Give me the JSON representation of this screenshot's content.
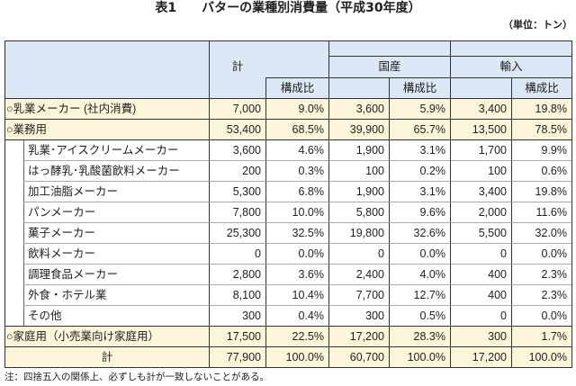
{
  "title": "表1　　バターの業種別消費量（平成30年度）",
  "unit": "（単位：トン）",
  "header": {
    "total": "計",
    "domestic": "国産",
    "imported": "輸入",
    "ratio": "構成比"
  },
  "sections": [
    {
      "label": "○乳業メーカー (社内消費)",
      "values": [
        "7,000",
        "9.0%",
        "3,600",
        "5.9%",
        "3,400",
        "19.8%"
      ]
    },
    {
      "label": "○業務用",
      "values": [
        "53,400",
        "68.5%",
        "39,900",
        "65.7%",
        "13,500",
        "78.5%"
      ],
      "breakdown": [
        {
          "label": "乳業･アイスクリームメーカー",
          "values": [
            "3,600",
            "4.6%",
            "1,900",
            "3.1%",
            "1,700",
            "9.9%"
          ]
        },
        {
          "label": "はっ酵乳･乳酸菌飲料メーカー",
          "values": [
            "200",
            "0.3%",
            "100",
            "0.2%",
            "100",
            "0.6%"
          ]
        },
        {
          "label": "加工油脂メーカー",
          "values": [
            "5,300",
            "6.8%",
            "1,900",
            "3.1%",
            "3,400",
            "19.8%"
          ]
        },
        {
          "label": "パンメーカー",
          "values": [
            "7,800",
            "10.0%",
            "5,800",
            "9.6%",
            "2,000",
            "11.6%"
          ]
        },
        {
          "label": "菓子メーカー",
          "values": [
            "25,300",
            "32.5%",
            "19,800",
            "32.6%",
            "5,500",
            "32.0%"
          ]
        },
        {
          "label": "飲料メーカー",
          "values": [
            "0",
            "0.0%",
            "0",
            "0.0%",
            "0",
            "0.0%"
          ]
        },
        {
          "label": "調理食品メーカー",
          "values": [
            "2,800",
            "3.6%",
            "2,400",
            "4.0%",
            "400",
            "2.3%"
          ]
        },
        {
          "label": "外食・ホテル業",
          "values": [
            "8,100",
            "10.4%",
            "7,700",
            "12.7%",
            "400",
            "2.3%"
          ]
        },
        {
          "label": "その他",
          "values": [
            "300",
            "0.4%",
            "300",
            "0.5%",
            "0",
            "0.0%"
          ]
        }
      ]
    },
    {
      "label": "○家庭用（小売業向け家庭用）",
      "values": [
        "17,500",
        "22.5%",
        "17,200",
        "28.3%",
        "300",
        "1.7%"
      ]
    }
  ],
  "total": {
    "label": "計",
    "values": [
      "77,900",
      "100.0%",
      "60,700",
      "100.0%",
      "17,200",
      "100.0%"
    ]
  },
  "note": "注：四捨五入の関係上、必ずしも計が一致しないことがある。",
  "colors": {
    "header_bg": "#dce8f5",
    "highlight_bg": "#fdf5da",
    "line": "#333333"
  }
}
